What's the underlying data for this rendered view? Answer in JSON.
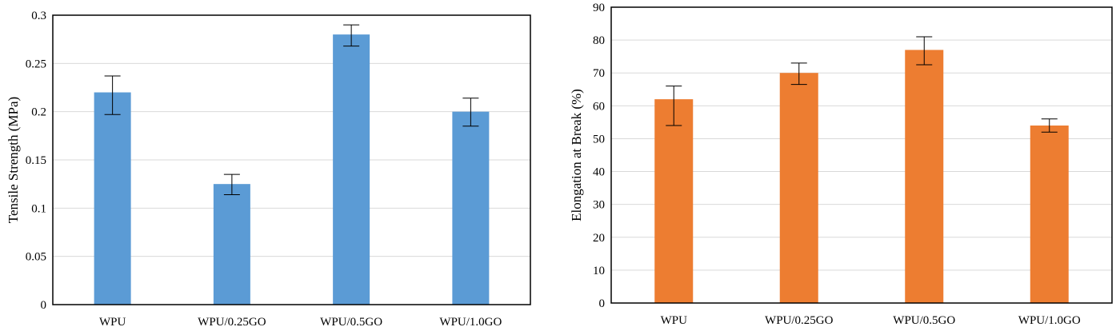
{
  "chart_data": [
    {
      "type": "bar",
      "categories": [
        "WPU",
        "WPU/0.25GO",
        "WPU/0.5GO",
        "WPU/1.0GO"
      ],
      "values": [
        0.22,
        0.125,
        0.28,
        0.2
      ],
      "error_low": [
        0.197,
        0.114,
        0.268,
        0.185
      ],
      "error_high": [
        0.237,
        0.135,
        0.29,
        0.214
      ],
      "ylabel": "Tensile Strength (MPa)",
      "xlabel": "",
      "ylim": [
        0,
        0.3
      ],
      "yticks": [
        "0",
        "0.05",
        "0.1",
        "0.15",
        "0.2",
        "0.25",
        "0.3"
      ],
      "ytick_values": [
        0,
        0.05,
        0.1,
        0.15,
        0.2,
        0.25,
        0.3
      ],
      "grid": true,
      "color": "#5b9bd5"
    },
    {
      "type": "bar",
      "categories": [
        "WPU",
        "WPU/0.25GO",
        "WPU/0.5GO",
        "WPU/1.0GO"
      ],
      "values": [
        62,
        70,
        77,
        54
      ],
      "error_low": [
        54,
        66.5,
        72.5,
        52
      ],
      "error_high": [
        66,
        73,
        81,
        56
      ],
      "ylabel": "Elongation at Break (%)",
      "xlabel": "",
      "ylim": [
        0,
        90
      ],
      "yticks": [
        "0",
        "10",
        "20",
        "30",
        "40",
        "50",
        "60",
        "70",
        "80",
        "90"
      ],
      "ytick_values": [
        0,
        10,
        20,
        30,
        40,
        50,
        60,
        70,
        80,
        90
      ],
      "grid": true,
      "color": "#ed7d31"
    }
  ]
}
